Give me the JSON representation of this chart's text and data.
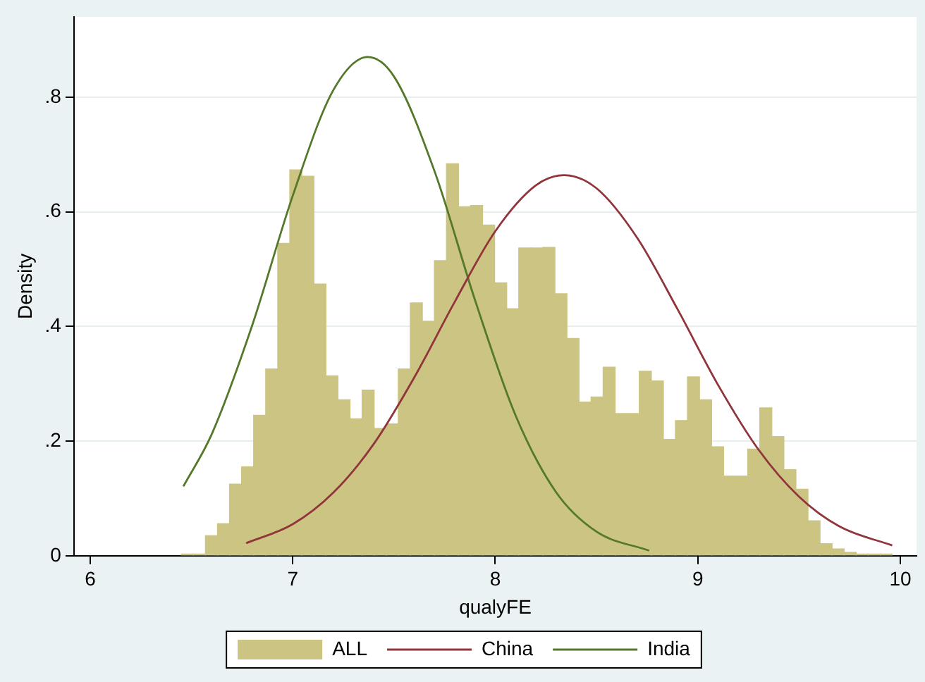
{
  "chart_data": {
    "type": "histogram",
    "xlabel": "qualyFE",
    "ylabel": "Density",
    "xlim": [
      5.92,
      10.08
    ],
    "xticks": [
      6,
      7,
      8,
      9,
      10
    ],
    "ylim": [
      0,
      0.94
    ],
    "yticks": [
      0,
      {
        "value": 0.2,
        "label": ".2"
      },
      {
        "value": 0.4,
        "label": ".4"
      },
      {
        "value": 0.6,
        "label": ".6"
      },
      {
        "value": 0.8,
        "label": ".8"
      }
    ],
    "grid": "y",
    "legend": "bottom",
    "bins": [
      6.45,
      6.5095,
      6.569,
      6.6285,
      6.688,
      6.7475,
      6.807,
      6.8665,
      6.926,
      6.9855,
      7.045,
      7.1045,
      7.164,
      7.2235,
      7.283,
      7.3425,
      7.402,
      7.4615,
      7.521,
      7.5805,
      7.64,
      7.6995,
      7.759,
      7.8185,
      7.878,
      7.9375,
      7.997,
      8.0565,
      8.116,
      8.1755,
      8.235,
      8.2945,
      8.354,
      8.4135,
      8.473,
      8.5325,
      8.592,
      8.6515,
      8.711,
      8.7705,
      8.83,
      8.8895,
      8.949,
      9.0085,
      9.068,
      9.1275,
      9.187,
      9.2465,
      9.306,
      9.3655,
      9.425,
      9.4845,
      9.544,
      9.6035,
      9.663,
      9.7225,
      9.782,
      9.8415,
      9.901,
      9.9605
    ],
    "series": [
      {
        "name": "ALL",
        "color": "#cbc482",
        "values": [
          0.003,
          0.003,
          0.035,
          0.056,
          0.125,
          0.155,
          0.245,
          0.326,
          0.545,
          0.673,
          0.662,
          0.474,
          0.314,
          0.272,
          0.239,
          0.289,
          0.222,
          0.23,
          0.326,
          0.441,
          0.409,
          0.515,
          0.684,
          0.609,
          0.611,
          0.577,
          0.476,
          0.431,
          0.537,
          0.537,
          0.538,
          0.457,
          0.379,
          0.268,
          0.277,
          0.329,
          0.248,
          0.248,
          0.322,
          0.305,
          0.203,
          0.236,
          0.312,
          0.272,
          0.19,
          0.139,
          0.139,
          0.186,
          0.258,
          0.208,
          0.15,
          0.116,
          0.061,
          0.021,
          0.012,
          0.006,
          0.003,
          0.003,
          0.003
        ]
      },
      {
        "name": "China",
        "type": "line",
        "color": "#90353b",
        "x": [
          6.77,
          7.0,
          7.2,
          7.4,
          7.6,
          7.8,
          8.0,
          8.2,
          8.34,
          8.5,
          8.7,
          8.9,
          9.1,
          9.3,
          9.5,
          9.7,
          9.96
        ],
        "values": [
          0.022,
          0.055,
          0.11,
          0.195,
          0.311,
          0.443,
          0.566,
          0.646,
          0.664,
          0.641,
          0.555,
          0.43,
          0.298,
          0.185,
          0.103,
          0.051,
          0.018
        ]
      },
      {
        "name": "India",
        "type": "line",
        "color": "#55792a",
        "x": [
          6.46,
          6.6,
          6.8,
          7.0,
          7.2,
          7.37,
          7.5,
          7.7,
          7.9,
          8.1,
          8.3,
          8.5,
          8.76
        ],
        "values": [
          0.121,
          0.212,
          0.402,
          0.628,
          0.812,
          0.87,
          0.836,
          0.671,
          0.446,
          0.245,
          0.111,
          0.042,
          0.009
        ]
      }
    ]
  }
}
